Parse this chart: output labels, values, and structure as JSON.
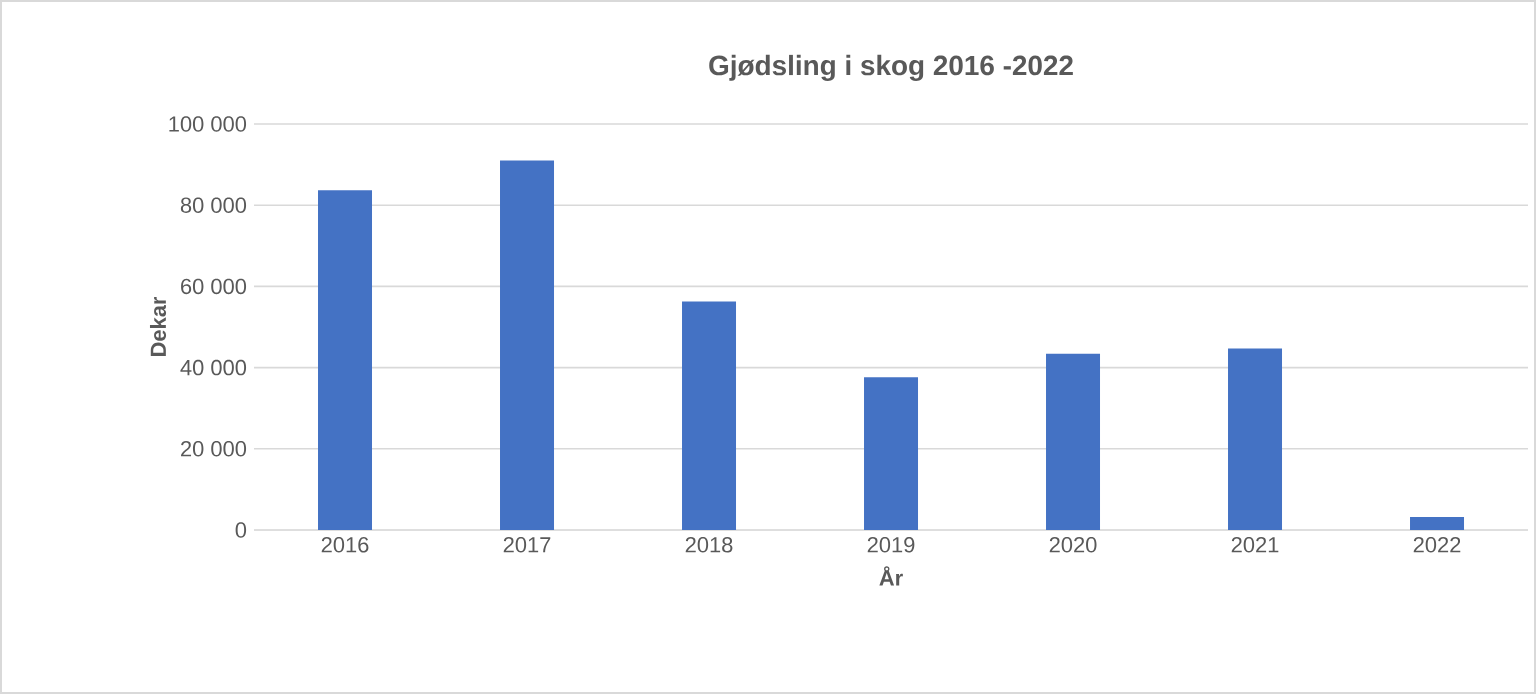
{
  "chart_data": {
    "type": "bar",
    "title": "Gjødsling i skog 2016 -2022",
    "xlabel": "År",
    "ylabel": "Dekar",
    "categories": [
      "2016",
      "2017",
      "2018",
      "2019",
      "2020",
      "2021",
      "2022"
    ],
    "values": [
      83700,
      91000,
      56300,
      37600,
      43400,
      44700,
      3200
    ],
    "color": "#4472c4",
    "ylim": [
      0,
      100000
    ],
    "yticks": [
      {
        "value": 0,
        "label": "0"
      },
      {
        "value": 20000,
        "label": "20 000"
      },
      {
        "value": 40000,
        "label": "40 000"
      },
      {
        "value": 60000,
        "label": "60 000"
      },
      {
        "value": 80000,
        "label": "80 000"
      },
      {
        "value": 100000,
        "label": "100 000"
      }
    ],
    "grid": "y"
  }
}
